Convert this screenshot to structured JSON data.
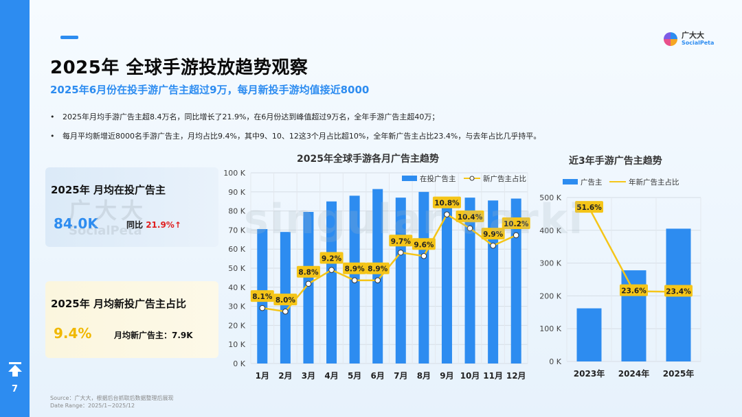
{
  "page": {
    "title": "2025年 全球手游投放趋势观察",
    "subtitle": "2025年6月份在投手游广告主超过9万，每月新投手游均值接近8000",
    "bullets": [
      "2025年月均手游广告主超8.4万名，同比增长了21.9%，在6月份达到峰值超过9万名，全年手游广告主超40万；",
      "每月平均新增近8000名手游广告主，月均占比9.4%，其中9、10、12这3个月占比超10%，全年新广告主占比23.4%，与去年占比几乎持平。"
    ],
    "page_number": "7",
    "source_line1": "Source：广大大，根据后台抓取后数据整理后展现",
    "source_line2": "Date Range：2025/1~2025/12"
  },
  "logo": {
    "name": "广大大",
    "sub": "SocialPeta"
  },
  "watermark": {
    "line1": "广大大",
    "line2": "SocialPeta",
    "overlay": "singular aarki"
  },
  "card1": {
    "label": "2025年 月均在投广告主",
    "value": "84.0K",
    "yoy_label": "同比",
    "yoy_value": "21.9%↑"
  },
  "card2": {
    "label": "2025年 月均新投广告主占比",
    "value": "9.4%",
    "new_label": "月均新广告主：7.9K"
  },
  "colors": {
    "blue": "#2d8cf0",
    "yellow": "#f5c518",
    "red": "#e02020"
  },
  "chart_data": [
    {
      "type": "bar",
      "title": "2025年全球手游各月广告主趋势",
      "categories": [
        "1月",
        "2月",
        "3月",
        "4月",
        "5月",
        "6月",
        "7月",
        "8月",
        "9月",
        "10月",
        "11月",
        "12月"
      ],
      "series": [
        {
          "name": "在投广告主",
          "type": "bar",
          "values": [
            70.5,
            69,
            79.5,
            85,
            88,
            91.5,
            87,
            90,
            86.5,
            87,
            85.5,
            86.5
          ]
        },
        {
          "name": "新广告主占比",
          "type": "line",
          "values": [
            8.1,
            8.0,
            8.8,
            9.2,
            8.9,
            8.9,
            9.7,
            9.6,
            10.8,
            10.4,
            9.9,
            10.2
          ],
          "labels": [
            "8.1%",
            "8.0%",
            "8.8%",
            "9.2%",
            "8.9%",
            "8.9%",
            "9.7%",
            "9.6%",
            "10.8%",
            "10.4%",
            "9.9%",
            "10.2%"
          ]
        }
      ],
      "yticks": [
        "0 K",
        "10 K",
        "20 K",
        "30 K",
        "40 K",
        "50 K",
        "60 K",
        "70 K",
        "80 K",
        "90 K",
        "100 K"
      ],
      "ylim": [
        0,
        100
      ]
    },
    {
      "type": "bar",
      "title": "近3年手游广告主趋势",
      "categories": [
        "2023年",
        "2024年",
        "2025年"
      ],
      "series": [
        {
          "name": "广告主",
          "type": "bar",
          "values": [
            162,
            278,
            405
          ]
        },
        {
          "name": "年新广告主占比",
          "type": "line",
          "values": [
            51.6,
            23.6,
            23.4
          ],
          "labels": [
            "51.6%",
            "23.6%",
            "23.4%"
          ]
        }
      ],
      "yticks": [
        "0 K",
        "100 K",
        "200 K",
        "300 K",
        "400 K",
        "500 K"
      ],
      "ylim": [
        0,
        500
      ]
    }
  ]
}
